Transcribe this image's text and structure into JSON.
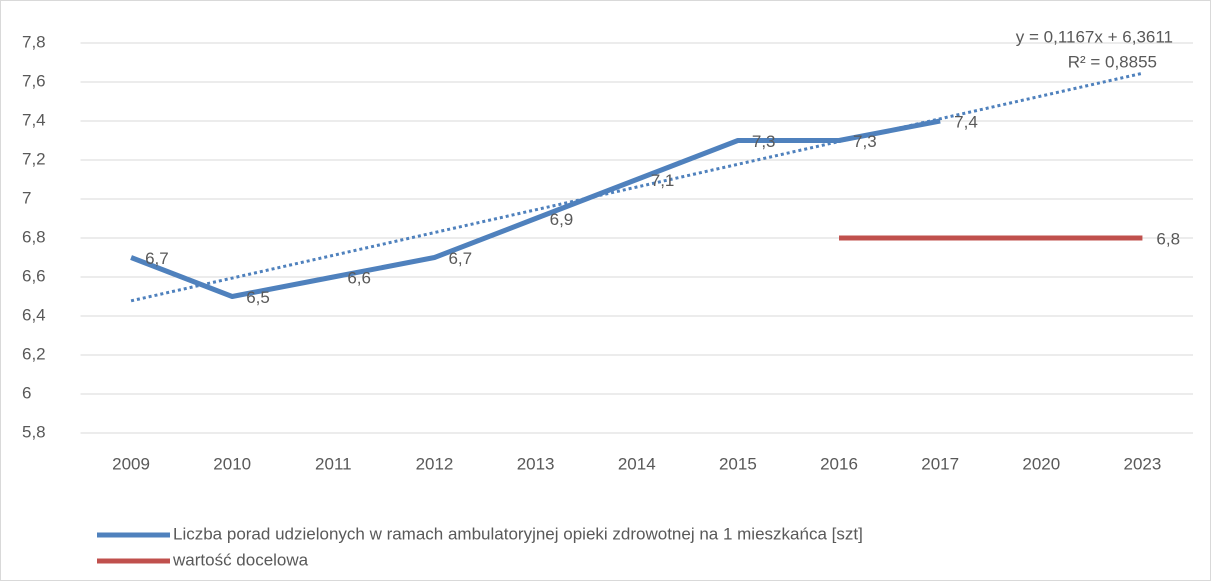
{
  "chart_data": {
    "type": "line",
    "categories": [
      "2009",
      "2010",
      "2011",
      "2012",
      "2013",
      "2014",
      "2015",
      "2016",
      "2017",
      "2020",
      "2023"
    ],
    "series": [
      {
        "name": "Liczba porad udzielonych w ramach ambulatoryjnej opieki zdrowotnej na 1 mieszkańca [szt]",
        "color": "#4f81bd",
        "values": [
          6.7,
          6.5,
          6.6,
          6.7,
          6.9,
          7.1,
          7.3,
          7.3,
          7.4,
          null,
          null
        ],
        "value_labels": [
          "6,7",
          "6,5",
          "6,6",
          "6,7",
          "6,9",
          "7,1",
          "7,3",
          "7,3",
          "7,4",
          null,
          null
        ]
      },
      {
        "name": "wartość docelowa",
        "color": "#c0504d",
        "values": [
          null,
          null,
          null,
          null,
          null,
          null,
          null,
          6.8,
          6.8,
          6.8,
          6.8
        ],
        "value_labels": [
          null,
          null,
          null,
          null,
          null,
          null,
          null,
          null,
          null,
          null,
          "6,8"
        ]
      }
    ],
    "trendline": {
      "slope": 0.1167,
      "intercept": 6.3611,
      "color": "#4f81bd",
      "equation": "y = 0,1167x + 6,3611",
      "r_squared": "R² = 0,8855"
    },
    "ylim": [
      5.8,
      7.8
    ],
    "yticks": [
      {
        "value": 5.8,
        "label": "5,8"
      },
      6,
      {
        "value": 6.2,
        "label": "6,2"
      },
      {
        "value": 6.4,
        "label": "6,4"
      },
      {
        "value": 6.6,
        "label": "6,6"
      },
      {
        "value": 6.8,
        "label": "6,8"
      },
      7,
      {
        "value": 7.2,
        "label": "7,2"
      },
      {
        "value": 7.4,
        "label": "7,4"
      },
      {
        "value": 7.6,
        "label": "7,6"
      },
      {
        "value": 7.8,
        "label": "7,8"
      }
    ],
    "grid": true,
    "legend": "bottom"
  }
}
